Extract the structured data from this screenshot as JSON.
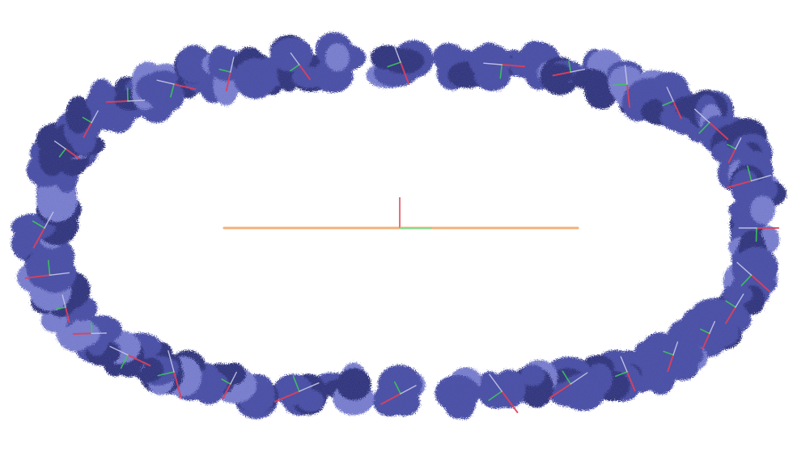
{
  "scene": {
    "background_color": "#ffffff",
    "protein_color": "#4a4fa8",
    "protein_shadow_color": "#2f327a",
    "protein_highlight_color": "#7f85d6",
    "axis_colors": {
      "x": "#e0405a",
      "y": "#3cc85a",
      "z": "#c8c8e8"
    },
    "central_axis_color": "#f2b07a",
    "central_marker_colors": {
      "vertical": "#e8707a",
      "horizontal": "#7ae08c"
    }
  }
}
